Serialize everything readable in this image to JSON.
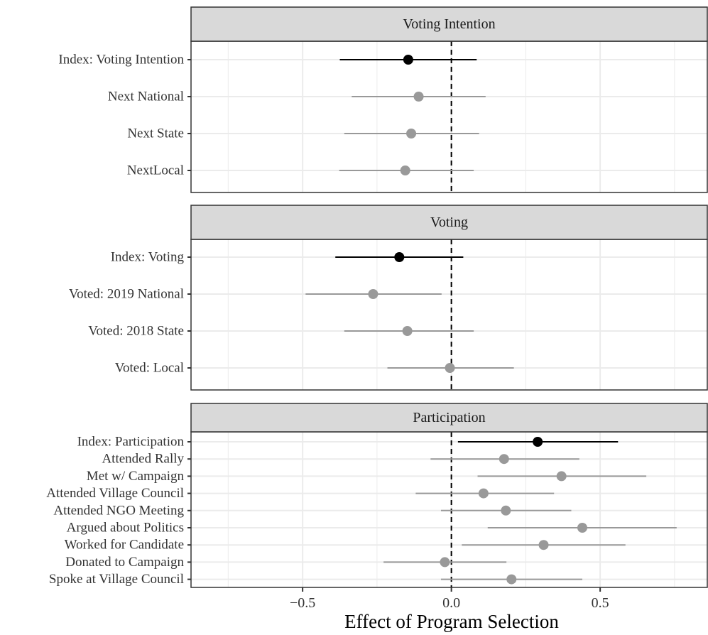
{
  "chart_data": {
    "type": "coefficient-plot",
    "xlabel": "Effect of Program Selection",
    "xlim": [
      -0.875,
      0.86
    ],
    "x_ticks": [
      -0.5,
      0.0,
      0.5
    ],
    "x_tick_labels": [
      "−0.5",
      "0.0",
      "0.5"
    ],
    "reference_line": {
      "x": 0,
      "style": "dashed"
    },
    "grid": true,
    "colors": {
      "index": "#000000",
      "component": "#999999",
      "strip_bg": "#d9d9d9",
      "grid": "#ebebeb"
    },
    "panels": [
      {
        "title": "Voting Intention",
        "rows": [
          {
            "label": "Index: Voting Intention",
            "estimate": -0.145,
            "ci": [
              -0.375,
              0.085
            ],
            "is_index": true
          },
          {
            "label": "Next National",
            "estimate": -0.11,
            "ci": [
              -0.335,
              0.115
            ],
            "is_index": false
          },
          {
            "label": "Next State",
            "estimate": -0.135,
            "ci": [
              -0.36,
              0.093
            ],
            "is_index": false
          },
          {
            "label": "NextLocal",
            "estimate": -0.155,
            "ci": [
              -0.377,
              0.075
            ],
            "is_index": false
          }
        ]
      },
      {
        "title": "Voting",
        "rows": [
          {
            "label": "Index: Voting",
            "estimate": -0.175,
            "ci": [
              -0.39,
              0.04
            ],
            "is_index": true
          },
          {
            "label": "Voted: 2019 National",
            "estimate": -0.263,
            "ci": [
              -0.49,
              -0.033
            ],
            "is_index": false
          },
          {
            "label": "Voted: 2018 State",
            "estimate": -0.148,
            "ci": [
              -0.36,
              0.075
            ],
            "is_index": false
          },
          {
            "label": "Voted: Local",
            "estimate": -0.005,
            "ci": [
              -0.215,
              0.21
            ],
            "is_index": false
          }
        ]
      },
      {
        "title": "Participation",
        "rows": [
          {
            "label": "Index: Participation",
            "estimate": 0.29,
            "ci": [
              0.022,
              0.56
            ],
            "is_index": true
          },
          {
            "label": "Attended Rally",
            "estimate": 0.177,
            "ci": [
              -0.07,
              0.43
            ],
            "is_index": false
          },
          {
            "label": "Met w/ Campaign",
            "estimate": 0.37,
            "ci": [
              0.088,
              0.655
            ],
            "is_index": false
          },
          {
            "label": "Attended Village Council",
            "estimate": 0.108,
            "ci": [
              -0.12,
              0.345
            ],
            "is_index": false
          },
          {
            "label": "Attended NGO Meeting",
            "estimate": 0.183,
            "ci": [
              -0.035,
              0.403
            ],
            "is_index": false
          },
          {
            "label": "Argued about Politics",
            "estimate": 0.44,
            "ci": [
              0.122,
              0.757
            ],
            "is_index": false
          },
          {
            "label": "Worked for Candidate",
            "estimate": 0.31,
            "ci": [
              0.035,
              0.585
            ],
            "is_index": false
          },
          {
            "label": "Donated to Campaign",
            "estimate": -0.022,
            "ci": [
              -0.228,
              0.185
            ],
            "is_index": false
          },
          {
            "label": "Spoke at Village Council",
            "estimate": 0.202,
            "ci": [
              -0.035,
              0.44
            ],
            "is_index": false
          }
        ]
      }
    ]
  }
}
